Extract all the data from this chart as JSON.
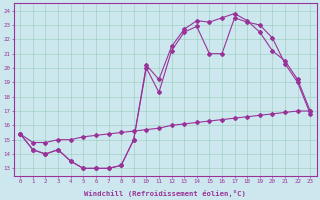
{
  "xlabel": "Windchill (Refroidissement éolien,°C)",
  "bg_color": "#cce8ee",
  "line_color": "#993399",
  "x_ticks": [
    0,
    1,
    2,
    3,
    4,
    5,
    6,
    7,
    8,
    9,
    10,
    11,
    12,
    13,
    14,
    15,
    16,
    17,
    18,
    19,
    20,
    21,
    22,
    23
  ],
  "ylim": [
    12.5,
    24.5
  ],
  "xlim": [
    -0.5,
    23.5
  ],
  "yticks": [
    13,
    14,
    15,
    16,
    17,
    18,
    19,
    20,
    21,
    22,
    23,
    24
  ],
  "line1_x": [
    0,
    1,
    2,
    3,
    4,
    5,
    6,
    7,
    8,
    9,
    10,
    11,
    12,
    13,
    14,
    15,
    16,
    17,
    18,
    19,
    20,
    21,
    22,
    23
  ],
  "line1_y": [
    15.4,
    14.3,
    14.0,
    14.3,
    13.5,
    13.0,
    13.0,
    13.0,
    13.2,
    15.0,
    20.0,
    18.3,
    21.2,
    22.5,
    22.9,
    21.0,
    21.0,
    23.5,
    23.2,
    23.0,
    22.1,
    20.3,
    19.0,
    16.8
  ],
  "line2_x": [
    0,
    1,
    2,
    3,
    4,
    5,
    6,
    7,
    8,
    9,
    10,
    11,
    12,
    13,
    14,
    15,
    16,
    17,
    18,
    19,
    20,
    21,
    22,
    23
  ],
  "line2_y": [
    15.4,
    14.3,
    14.0,
    14.3,
    13.5,
    13.0,
    13.0,
    13.0,
    13.2,
    15.0,
    20.2,
    19.2,
    21.5,
    22.7,
    23.3,
    23.2,
    23.5,
    23.8,
    23.3,
    22.5,
    21.2,
    20.5,
    19.2,
    17.0
  ],
  "line3_x": [
    0,
    1,
    2,
    3,
    4,
    5,
    6,
    7,
    8,
    9,
    10,
    11,
    12,
    13,
    14,
    15,
    16,
    17,
    18,
    19,
    20,
    21,
    22,
    23
  ],
  "line3_y": [
    15.4,
    14.8,
    14.8,
    15.0,
    15.0,
    15.2,
    15.3,
    15.4,
    15.5,
    15.6,
    15.7,
    15.8,
    16.0,
    16.1,
    16.2,
    16.3,
    16.4,
    16.5,
    16.6,
    16.7,
    16.8,
    16.9,
    17.0,
    17.0
  ]
}
